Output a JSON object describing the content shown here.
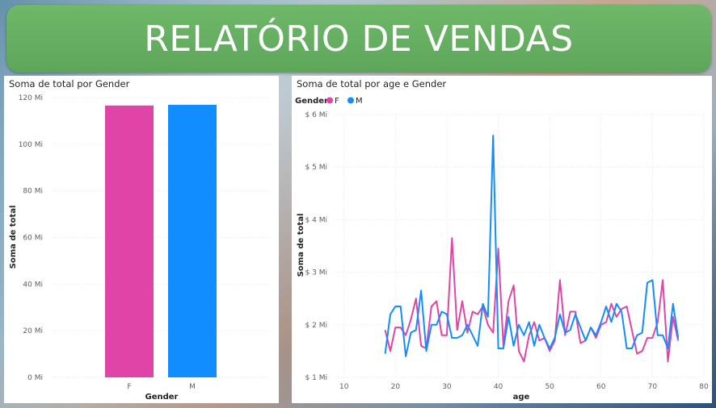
{
  "header": {
    "title": "RELATÓRIO DE VENDAS"
  },
  "colors": {
    "F": "#e044a7",
    "M": "#118dff",
    "banner": "#67b163"
  },
  "chart_data": [
    {
      "type": "bar",
      "title": "Soma de total por Gender",
      "xlabel": "Gender",
      "ylabel": "Soma de total",
      "categories": [
        "F",
        "M"
      ],
      "values": [
        116.6,
        116.9
      ],
      "ylim": [
        0,
        120
      ],
      "yticks": [
        0,
        20,
        40,
        60,
        80,
        100,
        120
      ],
      "ytick_labels": [
        "0 Mi",
        "20 Mi",
        "40 Mi",
        "60 Mi",
        "80 Mi",
        "100 Mi",
        "120 Mi"
      ],
      "grid": true
    },
    {
      "type": "line",
      "title": "Soma de total por age e Gender",
      "xlabel": "age",
      "ylabel": "Soma de total",
      "legend_title": "Gender",
      "legend_position": "top-left",
      "xlim": [
        8,
        80
      ],
      "xticks": [
        10,
        20,
        30,
        40,
        50,
        60,
        70,
        80
      ],
      "ylim": [
        1,
        6
      ],
      "yticks": [
        1,
        2,
        3,
        4,
        5,
        6
      ],
      "ytick_labels": [
        "$ 1 Mi",
        "$ 2 Mi",
        "$ 3 Mi",
        "$ 4 Mi",
        "$ 5 Mi",
        "$ 6 Mi"
      ],
      "grid": true,
      "x": [
        18,
        19,
        20,
        21,
        22,
        23,
        24,
        25,
        26,
        27,
        28,
        29,
        30,
        31,
        32,
        33,
        34,
        35,
        36,
        37,
        38,
        39,
        40,
        41,
        42,
        43,
        44,
        45,
        46,
        47,
        48,
        49,
        50,
        51,
        52,
        53,
        54,
        55,
        56,
        57,
        58,
        59,
        60,
        61,
        62,
        63,
        64,
        65,
        66,
        67,
        68,
        69,
        70,
        71,
        72,
        73,
        74,
        75
      ],
      "series": [
        {
          "name": "F",
          "values": [
            1.9,
            1.5,
            1.95,
            1.95,
            1.8,
            2.1,
            2.5,
            1.6,
            1.55,
            2.35,
            2.45,
            1.8,
            1.8,
            3.65,
            1.9,
            2.45,
            1.85,
            2.25,
            2.2,
            2.35,
            2.0,
            1.85,
            3.45,
            1.6,
            2.45,
            2.75,
            1.5,
            1.3,
            1.8,
            2.05,
            1.7,
            1.75,
            1.5,
            1.7,
            2.85,
            1.8,
            2.25,
            2.25,
            1.65,
            1.7,
            1.95,
            1.75,
            2.0,
            2.05,
            2.4,
            2.15,
            2.3,
            2.35,
            1.9,
            1.45,
            1.5,
            1.75,
            1.75,
            2.05,
            2.85,
            1.3,
            2.15,
            1.7
          ]
        },
        {
          "name": "M",
          "values": [
            1.45,
            2.2,
            2.35,
            2.35,
            1.4,
            1.85,
            1.9,
            2.65,
            1.5,
            2.0,
            2.0,
            2.25,
            2.2,
            1.75,
            1.75,
            1.8,
            2.0,
            1.8,
            1.6,
            2.4,
            2.15,
            5.6,
            1.55,
            1.55,
            2.15,
            1.6,
            2.0,
            1.8,
            2.05,
            1.6,
            2.0,
            1.75,
            1.55,
            1.75,
            2.2,
            1.85,
            1.9,
            2.2,
            1.95,
            1.7,
            1.95,
            1.8,
            2.05,
            2.35,
            2.05,
            2.4,
            2.25,
            1.55,
            1.55,
            1.8,
            1.85,
            2.8,
            2.85,
            1.8,
            1.8,
            1.55,
            2.4,
            1.75
          ]
        }
      ]
    }
  ]
}
